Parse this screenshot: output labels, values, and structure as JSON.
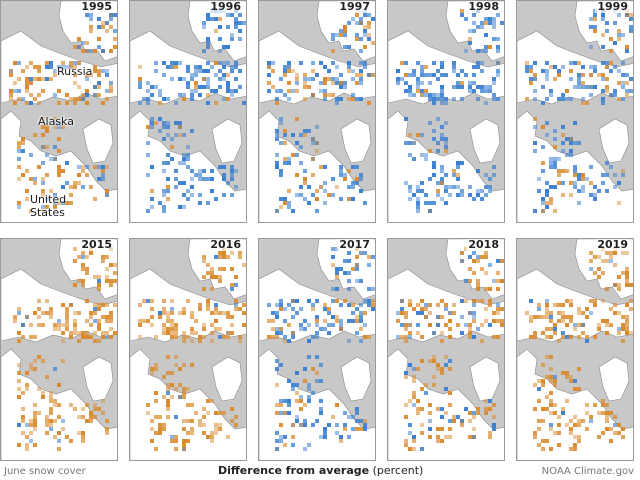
{
  "panels": [
    {
      "year": "1995",
      "tone": "mixed-orange"
    },
    {
      "year": "1996",
      "tone": "blue"
    },
    {
      "year": "1997",
      "tone": "mixed-blue"
    },
    {
      "year": "1998",
      "tone": "blue"
    },
    {
      "year": "1999",
      "tone": "mixed-blue"
    },
    {
      "year": "2015",
      "tone": "orange"
    },
    {
      "year": "2016",
      "tone": "orange"
    },
    {
      "year": "2017",
      "tone": "mixed-blue"
    },
    {
      "year": "2018",
      "tone": "mixed-orange"
    },
    {
      "year": "2019",
      "tone": "orange"
    }
  ],
  "map_labels": {
    "russia": "Russia",
    "alaska": "Alaska",
    "united_states_1": "United",
    "united_states_2": "States"
  },
  "footer": {
    "left": "June snow cover",
    "center_bold": "Difference from average",
    "center_unit": "(percent)",
    "right": "NOAA Climate.gov"
  },
  "colors": {
    "land": "#ffffff",
    "ocean_ice": "#c8c8c8",
    "above_average": "#3a7fd0",
    "below_average": "#d98a2b"
  }
}
